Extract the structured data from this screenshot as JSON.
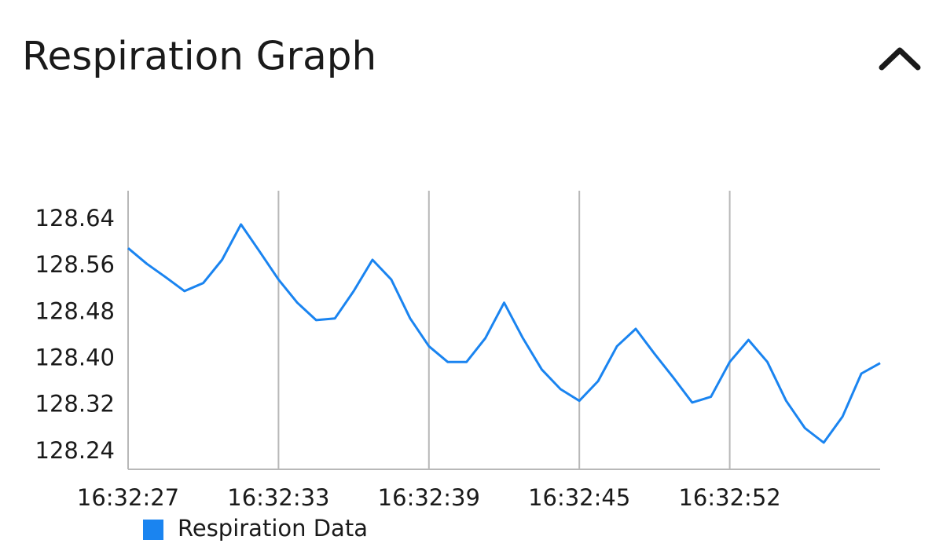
{
  "header": {
    "title": "Respiration Graph"
  },
  "chart_data": {
    "type": "line",
    "categories": [
      "16:32:27",
      null,
      null,
      null,
      null,
      null,
      null,
      null,
      "16:32:33",
      null,
      null,
      null,
      null,
      null,
      null,
      null,
      "16:32:39",
      null,
      null,
      null,
      null,
      null,
      null,
      null,
      "16:32:45",
      null,
      null,
      null,
      null,
      null,
      null,
      null,
      "16:32:52",
      null,
      null,
      null,
      null,
      null,
      null,
      null,
      null
    ],
    "series": [
      {
        "name": "Respiration Data",
        "color": "#1a84f0",
        "values": [
          128.591,
          128.564,
          128.541,
          128.517,
          128.531,
          128.571,
          128.632,
          128.585,
          128.537,
          128.497,
          128.467,
          128.47,
          128.517,
          128.571,
          128.537,
          128.47,
          128.422,
          128.395,
          128.395,
          128.436,
          128.497,
          128.436,
          128.382,
          128.348,
          128.328,
          128.362,
          128.422,
          128.452,
          128.409,
          128.368,
          128.325,
          128.335,
          128.395,
          128.433,
          128.395,
          128.328,
          128.281,
          128.256,
          128.301,
          128.375,
          128.393
        ]
      }
    ],
    "ylim": [
      128.21,
      128.69
    ],
    "yticks": [
      128.24,
      128.32,
      {
        "value": 128.4,
        "label": "128.40"
      },
      128.48,
      128.56,
      128.64
    ],
    "grid": "x",
    "legend": "bottom-left"
  }
}
